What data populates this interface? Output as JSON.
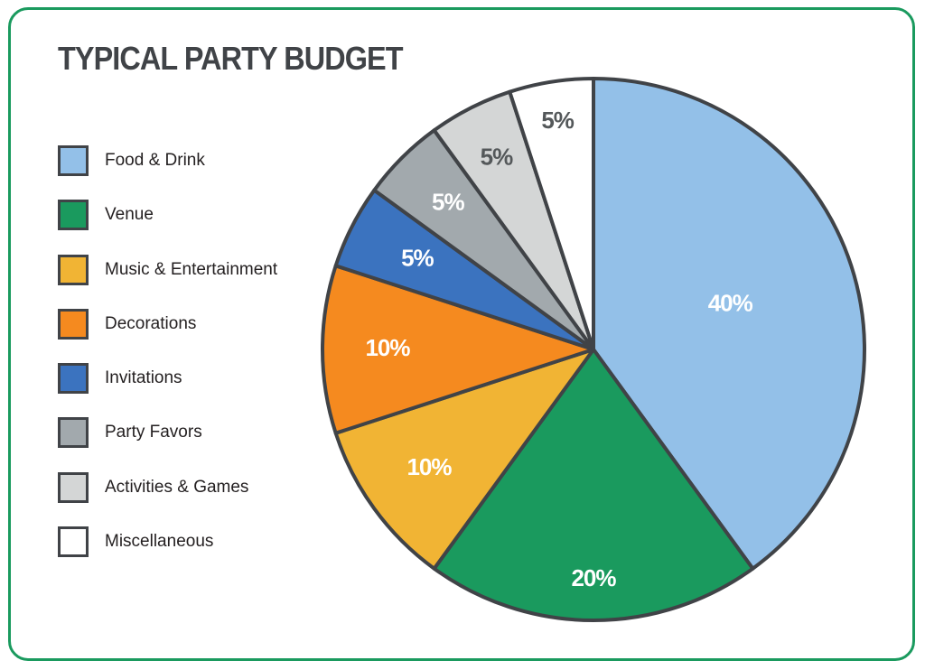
{
  "chart_data": {
    "type": "pie",
    "title": "TYPICAL PARTY BUDGET",
    "legend_position": "left",
    "slices": [
      {
        "label": "Food & Drink",
        "value": 40,
        "value_label": "40%",
        "color": "#93c0e8",
        "label_color": "#ffffff"
      },
      {
        "label": "Venue",
        "value": 20,
        "value_label": "20%",
        "color": "#1a9a5e",
        "label_color": "#ffffff"
      },
      {
        "label": "Music & Entertainment",
        "value": 10,
        "value_label": "10%",
        "color": "#f1b434",
        "label_color": "#ffffff"
      },
      {
        "label": "Decorations",
        "value": 10,
        "value_label": "10%",
        "color": "#f58a1f",
        "label_color": "#ffffff"
      },
      {
        "label": "Invitations",
        "value": 5,
        "value_label": "5%",
        "color": "#3b73bf",
        "label_color": "#ffffff"
      },
      {
        "label": "Party Favors",
        "value": 5,
        "value_label": "5%",
        "color": "#a2a9ad",
        "label_color": "#ffffff"
      },
      {
        "label": "Activities & Games",
        "value": 5,
        "value_label": "5%",
        "color": "#d4d6d6",
        "label_color": "#54585a"
      },
      {
        "label": "Miscellaneous",
        "value": 5,
        "value_label": "5%",
        "color": "#ffffff",
        "label_color": "#54585a"
      }
    ]
  },
  "colors": {
    "frame_border": "#1a9a5e",
    "outline": "#404347",
    "title": "#404347"
  }
}
